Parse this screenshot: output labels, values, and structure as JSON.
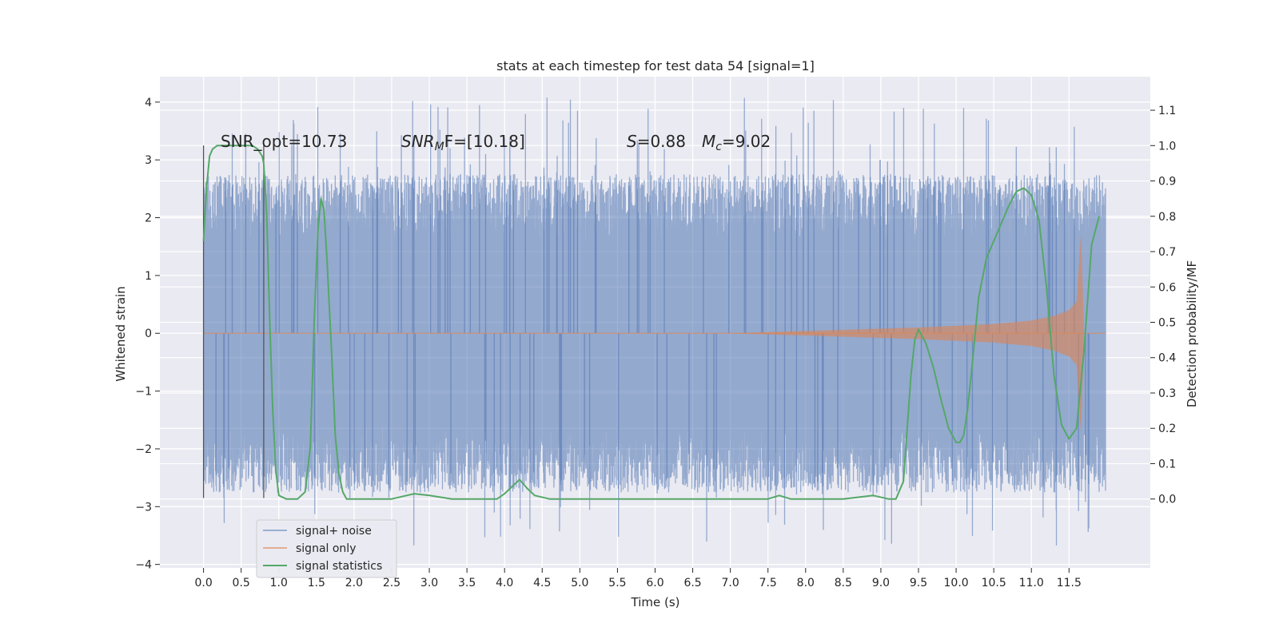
{
  "chart_data": {
    "type": "line",
    "title": "stats at each timestep for test data 54 [signal=1]",
    "xlabel": "Time (s)",
    "ylabel": "Whitened strain",
    "ylabel_right": "Detection probability/MF",
    "xlim": [
      -0.58,
      12.58
    ],
    "ylim": [
      -4.06,
      4.44
    ],
    "ylim_right": [
      -0.195,
      1.195
    ],
    "x_ticks": [
      "0.0",
      "0.5",
      "1.0",
      "1.5",
      "2.0",
      "2.5",
      "3.0",
      "3.5",
      "4.0",
      "4.5",
      "5.0",
      "5.5",
      "6.0",
      "6.5",
      "7.0",
      "7.5",
      "8.0",
      "8.5",
      "9.0",
      "9.5",
      "10.0",
      "10.5",
      "11.0",
      "11.5"
    ],
    "y_ticks": [
      "4",
      "3",
      "2",
      "1",
      "0",
      "−1",
      "−2",
      "−3",
      "−4"
    ],
    "y_ticks_right": [
      "1.1",
      "1.0",
      "0.9",
      "0.8",
      "0.7",
      "0.6",
      "0.5",
      "0.4",
      "0.3",
      "0.2",
      "0.1",
      "0.0"
    ],
    "grid": true,
    "legend_position": "lower-left",
    "annotations": {
      "snr_opt": "SNR_opt=10.73",
      "snr_mf_name": "SNR",
      "snr_mf_sub": "M",
      "snr_mf_rest": "F=[10.18]",
      "s_name": "S",
      "s_value": "=0.88",
      "mc_name": "M",
      "mc_sub": "c",
      "mc_value": "=9.02"
    },
    "markers": {
      "x": [
        0.0,
        0.8
      ]
    },
    "series": [
      {
        "name": "signal+ noise",
        "color": "#4c72b0",
        "style": "noise band",
        "t_range": [
          0.0,
          11.99
        ],
        "envelope_median_abs": 1.9,
        "peak_max": 4.1,
        "peak_min": -3.7
      },
      {
        "name": "signal only",
        "color": "#dd8452",
        "style": "chirp",
        "t_range": [
          0.0,
          11.99
        ],
        "envelope": {
          "t": [
            0.0,
            7.0,
            7.5,
            8.5,
            9.5,
            10.5,
            11.0,
            11.3,
            11.5,
            11.6,
            11.66,
            11.7
          ],
          "amp": [
            0.0,
            0.0,
            0.02,
            0.06,
            0.1,
            0.16,
            0.22,
            0.3,
            0.4,
            0.55,
            1.75,
            0.0
          ]
        }
      },
      {
        "name": "signal statistics",
        "color": "#55a868",
        "axis": "right",
        "x": [
          0.0,
          0.04,
          0.08,
          0.12,
          0.18,
          0.3,
          0.5,
          0.65,
          0.72,
          0.78,
          0.8,
          0.84,
          0.88,
          0.92,
          0.96,
          1.0,
          1.1,
          1.25,
          1.35,
          1.42,
          1.47,
          1.52,
          1.56,
          1.6,
          1.64,
          1.7,
          1.75,
          1.8,
          1.85,
          1.9,
          2.0,
          2.5,
          2.8,
          3.0,
          3.3,
          3.6,
          3.9,
          4.0,
          4.1,
          4.2,
          4.3,
          4.4,
          4.6,
          5.0,
          6.0,
          7.0,
          7.5,
          7.65,
          7.8,
          8.0,
          8.5,
          8.9,
          9.1,
          9.2,
          9.3,
          9.4,
          9.45,
          9.5,
          9.6,
          9.7,
          9.8,
          9.9,
          10.0,
          10.05,
          10.1,
          10.15,
          10.2,
          10.3,
          10.4,
          10.5,
          10.6,
          10.7,
          10.8,
          10.9,
          11.0,
          11.1,
          11.2,
          11.3,
          11.4,
          11.5,
          11.6,
          11.7,
          11.8,
          11.9
        ],
        "y": [
          0.73,
          0.88,
          0.97,
          0.99,
          1.0,
          1.0,
          1.0,
          1.0,
          0.99,
          0.97,
          0.95,
          0.8,
          0.5,
          0.25,
          0.08,
          0.01,
          0.0,
          0.0,
          0.02,
          0.15,
          0.5,
          0.76,
          0.85,
          0.82,
          0.68,
          0.42,
          0.18,
          0.07,
          0.02,
          0.0,
          0.0,
          0.0,
          0.015,
          0.01,
          0.0,
          0.0,
          0.0,
          0.015,
          0.035,
          0.055,
          0.03,
          0.01,
          0.0,
          0.0,
          0.0,
          0.0,
          0.0,
          0.01,
          0.0,
          0.0,
          0.0,
          0.01,
          0.0,
          0.0,
          0.05,
          0.35,
          0.45,
          0.48,
          0.44,
          0.37,
          0.28,
          0.2,
          0.16,
          0.16,
          0.18,
          0.25,
          0.35,
          0.57,
          0.68,
          0.73,
          0.78,
          0.83,
          0.87,
          0.88,
          0.86,
          0.79,
          0.6,
          0.35,
          0.21,
          0.17,
          0.2,
          0.42,
          0.72,
          0.8
        ]
      }
    ]
  }
}
